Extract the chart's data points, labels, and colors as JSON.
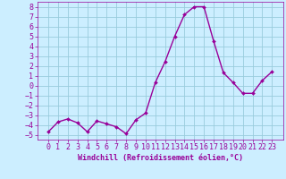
{
  "x": [
    0,
    1,
    2,
    3,
    4,
    5,
    6,
    7,
    8,
    9,
    10,
    11,
    12,
    13,
    14,
    15,
    16,
    17,
    18,
    19,
    20,
    21,
    22,
    23
  ],
  "y": [
    -4.7,
    -3.7,
    -3.4,
    -3.8,
    -4.7,
    -3.6,
    -3.9,
    -4.2,
    -4.9,
    -3.5,
    -2.8,
    0.3,
    2.4,
    5.0,
    7.2,
    8.0,
    8.0,
    4.5,
    1.3,
    0.3,
    -0.8,
    -0.8,
    0.5,
    1.4
  ],
  "line_color": "#990099",
  "marker": "D",
  "marker_size": 2,
  "line_width": 1.0,
  "bg_color": "#cceeff",
  "grid_color": "#99ccdd",
  "xlabel": "Windchill (Refroidissement éolien,°C)",
  "xlabel_fontsize": 6,
  "tick_fontsize": 6,
  "ylim": [
    -5.5,
    8.5
  ],
  "yticks": [
    -5,
    -4,
    -3,
    -2,
    -1,
    0,
    1,
    2,
    3,
    4,
    5,
    6,
    7,
    8
  ],
  "xticks": [
    0,
    1,
    2,
    3,
    4,
    5,
    6,
    7,
    8,
    9,
    10,
    11,
    12,
    13,
    14,
    15,
    16,
    17,
    18,
    19,
    20,
    21,
    22,
    23
  ]
}
